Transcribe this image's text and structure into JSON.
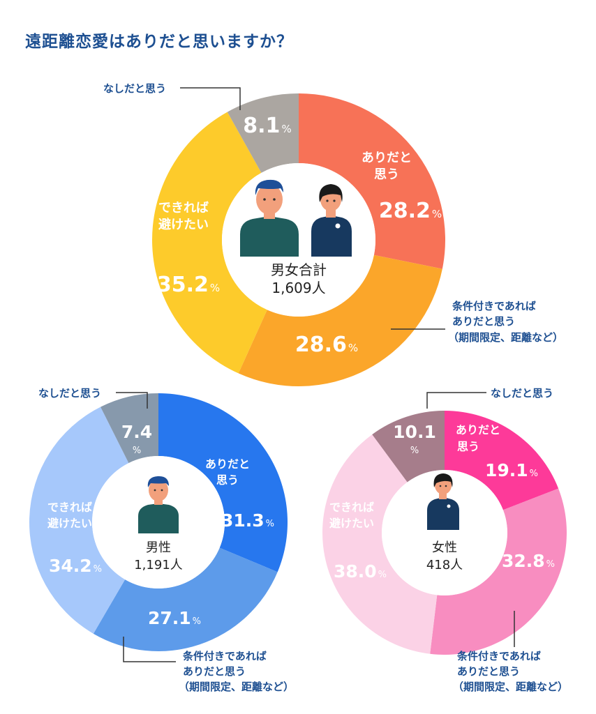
{
  "title": "遠距離恋愛はありだと思いますか？",
  "colors": {
    "title": "#1d4f91",
    "callout": "#1d4f91",
    "leader": "#333333"
  },
  "chart_data": [
    {
      "type": "pie",
      "id": "total",
      "center_label": "男女合計",
      "center_count": "1,609人",
      "unit": "%",
      "slices": [
        {
          "label": "ありだと思う",
          "value": 28.2,
          "color": "#f77257"
        },
        {
          "label": "条件付きであればありだと思う（期間限定、距離など）",
          "value": 28.6,
          "color": "#fba62a"
        },
        {
          "label": "できれば避けたい",
          "value": 35.2,
          "color": "#fdcb2b"
        },
        {
          "label": "なしだと思う",
          "value": 8.1,
          "color": "#aba6a1"
        }
      ]
    },
    {
      "type": "pie",
      "id": "male",
      "center_label": "男性",
      "center_count": "1,191人",
      "unit": "%",
      "slices": [
        {
          "label": "ありだと思う",
          "value": 31.3,
          "color": "#2777ee"
        },
        {
          "label": "条件付きであればありだと思う（期間限定、距離など）",
          "value": 27.1,
          "color": "#5d9bea"
        },
        {
          "label": "できれば避けたい",
          "value": 34.2,
          "color": "#a6c8fb"
        },
        {
          "label": "なしだと思う",
          "value": 7.4,
          "color": "#8799ac"
        }
      ]
    },
    {
      "type": "pie",
      "id": "female",
      "center_label": "女性",
      "center_count": "418人",
      "unit": "%",
      "slices": [
        {
          "label": "ありだと思う",
          "value": 19.1,
          "color": "#fd3a99"
        },
        {
          "label": "条件付きであればありだと思う（期間限定、距離など）",
          "value": 32.8,
          "color": "#f88dc0"
        },
        {
          "label": "できれば避けたい",
          "value": 38.0,
          "color": "#fbd2e6"
        },
        {
          "label": "なしだと思う",
          "value": 10.1,
          "color": "#a67d8b"
        }
      ]
    }
  ],
  "labels": {
    "total": {
      "ari_1": "ありだと",
      "ari_2": "思う",
      "dekireba_1": "できれば",
      "dekireba_2": "避けたい",
      "nashi": "なしだと思う",
      "joken_1": "条件付きであれば",
      "joken_2": "ありだと思う",
      "joken_3": "（期間限定、距離など）"
    },
    "male": {
      "ari_1": "ありだと",
      "ari_2": "思う",
      "dekireba_1": "できれば",
      "dekireba_2": "避けたい",
      "nashi": "なしだと思う",
      "joken_1": "条件付きであれば",
      "joken_2": "ありだと思う",
      "joken_3": "（期間限定、距離など）"
    },
    "female": {
      "ari_1": "ありだと",
      "ari_2": "思う",
      "dekireba_1": "できれば",
      "dekireba_2": "避けたい",
      "nashi": "なしだと思う",
      "joken_1": "条件付きであれば",
      "joken_2": "ありだと思う",
      "joken_3": "（期間限定、距離など）"
    }
  },
  "illustrations": {
    "total": [
      "man-icon",
      "woman-icon"
    ],
    "male": [
      "man-icon"
    ],
    "female": [
      "woman-icon"
    ]
  }
}
